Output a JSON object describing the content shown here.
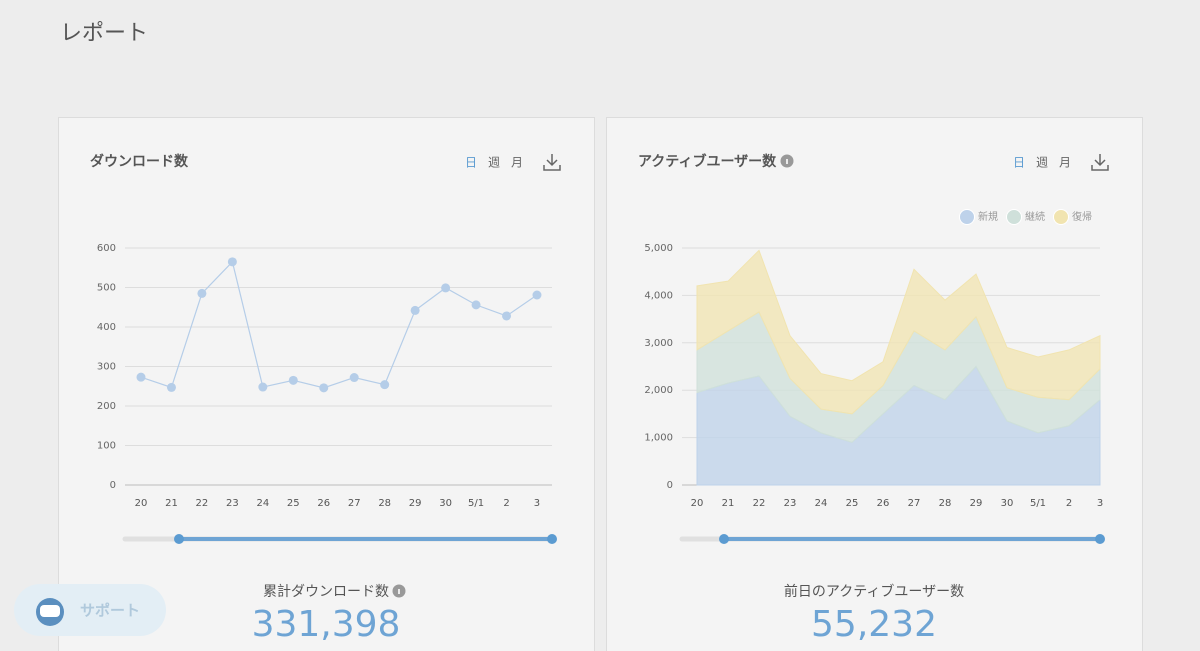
{
  "page_title": "レポート",
  "support": "サポート",
  "cards": [
    {
      "periods": [
        "日",
        "週",
        "月"
      ],
      "stat_label": "累計ダウンロード数",
      "stat_value": "331,398"
    },
    {
      "periods": [
        "日",
        "週",
        "月"
      ],
      "stat_label": "前日のアクティブユーザー数",
      "stat_value": "55,232"
    }
  ],
  "chart_data": [
    {
      "type": "line",
      "title": "ダウンロード数",
      "categories": [
        "20",
        "21",
        "22",
        "23",
        "24",
        "25",
        "26",
        "27",
        "28",
        "29",
        "30",
        "5/1",
        "2",
        "3"
      ],
      "values": [
        273,
        247,
        485,
        565,
        248,
        265,
        246,
        272,
        254,
        442,
        499,
        456,
        428,
        481
      ],
      "color": "#b5cde8",
      "ylim": [
        0,
        600
      ],
      "yticks": [
        0,
        100,
        200,
        300,
        400,
        500,
        600
      ],
      "grid": true
    },
    {
      "type": "stacked_area",
      "title": "アクティブユーザー数",
      "categories": [
        "20",
        "21",
        "22",
        "23",
        "24",
        "25",
        "26",
        "27",
        "28",
        "29",
        "30",
        "5/1",
        "2",
        "3"
      ],
      "series": [
        {
          "name": "新規",
          "color": "#bed2ea",
          "values": [
            1950,
            2150,
            2300,
            1450,
            1100,
            900,
            1500,
            2100,
            1800,
            2500,
            1350,
            1100,
            1250,
            1800
          ]
        },
        {
          "name": "継続",
          "color": "#cfe0da",
          "values": [
            900,
            1100,
            1350,
            800,
            500,
            600,
            600,
            1150,
            1050,
            1050,
            700,
            750,
            550,
            650
          ]
        },
        {
          "name": "復帰",
          "color": "#f1e4b0",
          "values": [
            1350,
            1050,
            1300,
            900,
            750,
            700,
            500,
            1300,
            1050,
            900,
            850,
            850,
            1050,
            700
          ]
        }
      ],
      "ylim": [
        0,
        5000
      ],
      "yticks": [
        0,
        {
          "value": 1000,
          "label": "1,000"
        },
        {
          "value": 2000,
          "label": "2,000"
        },
        {
          "value": 3000,
          "label": "3,000"
        },
        {
          "value": 4000,
          "label": "4,000"
        },
        {
          "value": 5000,
          "label": "5,000"
        }
      ],
      "grid": true,
      "legend": "top-right"
    }
  ]
}
